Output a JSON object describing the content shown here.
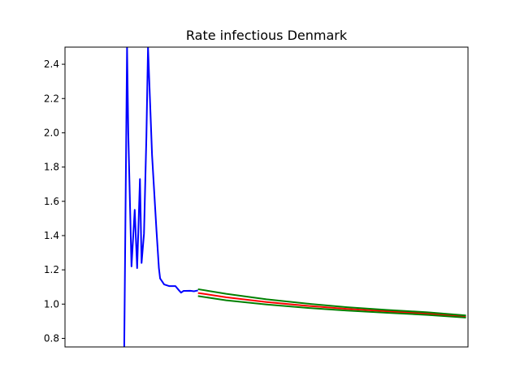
{
  "chart_data": {
    "type": "line",
    "title": "Rate infectious Denmark",
    "xlabel": "",
    "ylabel": "",
    "ylim": [
      0.75,
      2.5
    ],
    "xlim": [
      0,
      100
    ],
    "yticks": [
      0.8,
      1.0,
      1.2,
      1.4,
      1.6,
      1.8,
      2.0,
      2.2,
      2.4
    ],
    "ytick_labels": [
      "0.8",
      "1.0",
      "1.2",
      "1.4",
      "1.6",
      "1.8",
      "2.0",
      "2.2",
      "2.4"
    ],
    "xticks_visible": false,
    "grid": false,
    "legend": false,
    "series": [
      {
        "color": "#0000ff",
        "x": [
          14.7,
          15.4,
          15.7,
          16.5,
          17.3,
          17.9,
          18.6,
          19.0,
          19.6,
          20.2,
          20.6,
          21.6,
          22.4,
          22.7,
          23.3,
          23.6,
          24.6,
          25.9,
          27.4,
          28.3,
          28.8,
          29.4,
          29.9,
          31.1,
          32.0,
          33.0
        ],
        "y": [
          0.75,
          2.5,
          2.0,
          1.22,
          1.55,
          1.21,
          1.73,
          1.24,
          1.41,
          1.98,
          2.5,
          1.87,
          1.55,
          1.43,
          1.21,
          1.15,
          1.115,
          1.105,
          1.105,
          1.08,
          1.067,
          1.077,
          1.077,
          1.078,
          1.075,
          1.08
        ]
      },
      {
        "color": "#ff0000",
        "x": [
          33.0,
          40,
          50,
          60,
          70,
          80,
          90,
          99.5
        ],
        "y": [
          1.065,
          1.04,
          1.012,
          0.99,
          0.972,
          0.958,
          0.945,
          0.927
        ]
      },
      {
        "color": "#008000",
        "x": [
          33.0,
          40,
          50,
          60,
          70,
          80,
          90,
          99.5
        ],
        "y": [
          1.087,
          1.06,
          1.028,
          1.003,
          0.982,
          0.966,
          0.952,
          0.934
        ]
      },
      {
        "color": "#008000",
        "x": [
          33.0,
          40,
          50,
          60,
          70,
          80,
          90,
          99.5
        ],
        "y": [
          1.047,
          1.022,
          0.998,
          0.978,
          0.962,
          0.949,
          0.937,
          0.921
        ]
      }
    ]
  }
}
